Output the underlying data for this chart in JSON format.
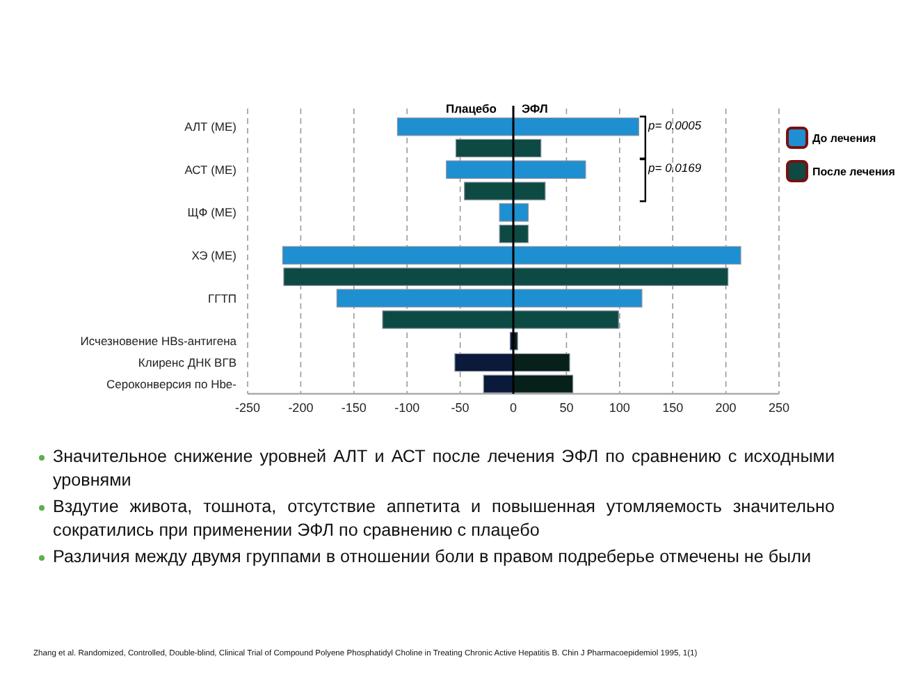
{
  "chart_data": {
    "type": "bar",
    "orientation": "horizontal",
    "stacked": true,
    "categories": [
      "АЛТ (МЕ)",
      null,
      "АСТ (МЕ)",
      null,
      "ЩФ (МЕ)",
      null,
      "ХЭ (МЕ)",
      null,
      "ГГТП",
      null,
      "Исчезновение HBs-антигена",
      "Клиренс ДНК ВГВ",
      "Сероконверсия по Hbe-"
    ],
    "series": [
      {
        "name": "До лечения",
        "color": "#1e8fd0",
        "values": [
          -109,
          null,
          -63,
          null,
          -13,
          null,
          -217,
          null,
          -166,
          null,
          null,
          null,
          null
        ]
      },
      {
        "color": "#1e8fd0",
        "values": [
          118,
          null,
          68,
          null,
          14,
          null,
          214,
          null,
          121,
          null,
          null,
          null,
          null
        ]
      },
      {
        "name": "После лечения",
        "color": "#0d4a44",
        "values": [
          null,
          -54,
          null,
          -46,
          null,
          -13,
          null,
          -216,
          null,
          -123,
          null,
          null,
          null
        ]
      },
      {
        "color": "#0d4a44",
        "values": [
          null,
          26,
          null,
          30,
          null,
          14,
          null,
          202,
          null,
          99,
          null,
          null,
          null
        ]
      },
      {
        "color": "#0b1a3a",
        "values": [
          null,
          null,
          null,
          null,
          null,
          null,
          null,
          null,
          null,
          null,
          -3,
          -55,
          -28
        ]
      },
      {
        "color": "#08201a",
        "values": [
          null,
          null,
          null,
          null,
          null,
          null,
          null,
          null,
          null,
          null,
          4,
          53,
          56
        ]
      }
    ],
    "xlim": [
      -250,
      250
    ],
    "xticks": [
      -250,
      -200,
      -150,
      -100,
      -50,
      0,
      50,
      100,
      150,
      200,
      250
    ],
    "grid": "x",
    "legend": "right",
    "annotations": [
      "Плацебо",
      "ЭФЛ",
      "p= 0.0005",
      "p= 0.0169",
      "Значительное снижение уровней АЛТ и АСТ после лечения ЭФЛ по сравнению с исходными уровнями",
      "Вздутие живота, тошнота, отсутствие аппетита и повышенная утомляемость значительно сократились при применении ЭФЛ по сравнению с плацебо",
      "Различия между двумя группами в отношении боли в правом подреберье отмечены не были",
      "Zhang et al. Randomized, Controlled, Double-blind, Clinical Trial of Compound Polyene Phosphatidyl Choline in Treating Chronic Active Hepatitis B. Chin J Pharmacoepidemiol 1995, 1(1)"
    ]
  }
}
